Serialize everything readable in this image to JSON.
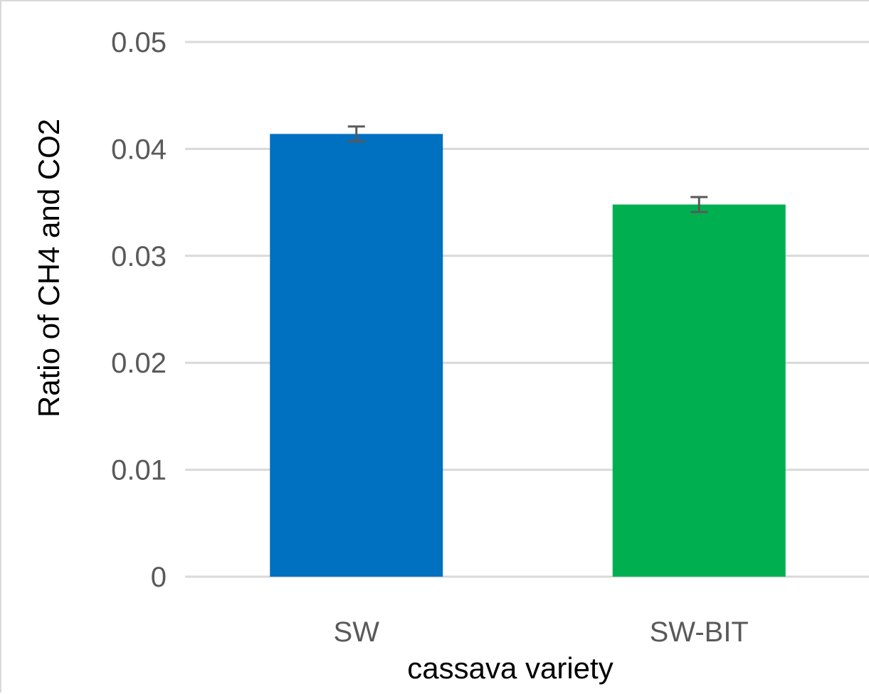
{
  "chart_data": {
    "type": "bar",
    "title": "",
    "xlabel": "cassava variety",
    "ylabel": "Ratio of CH4 and CO2",
    "categories": [
      "SW",
      "SW-BIT"
    ],
    "values": [
      0.0414,
      0.0348
    ],
    "error": [
      0.0007,
      0.0007
    ],
    "ylim": [
      0,
      0.05
    ],
    "yticks": [
      0,
      0.01,
      0.02,
      0.03,
      0.04,
      0.05
    ],
    "ytick_labels": [
      "0",
      "0.01",
      "0.02",
      "0.03",
      "0.04",
      "0.05"
    ],
    "bar_colors": [
      "#0070C0",
      "#00B050"
    ],
    "gridline_color": "#d9d9d9",
    "errorbar_color": "#595959",
    "grid": true,
    "legend": "none"
  }
}
